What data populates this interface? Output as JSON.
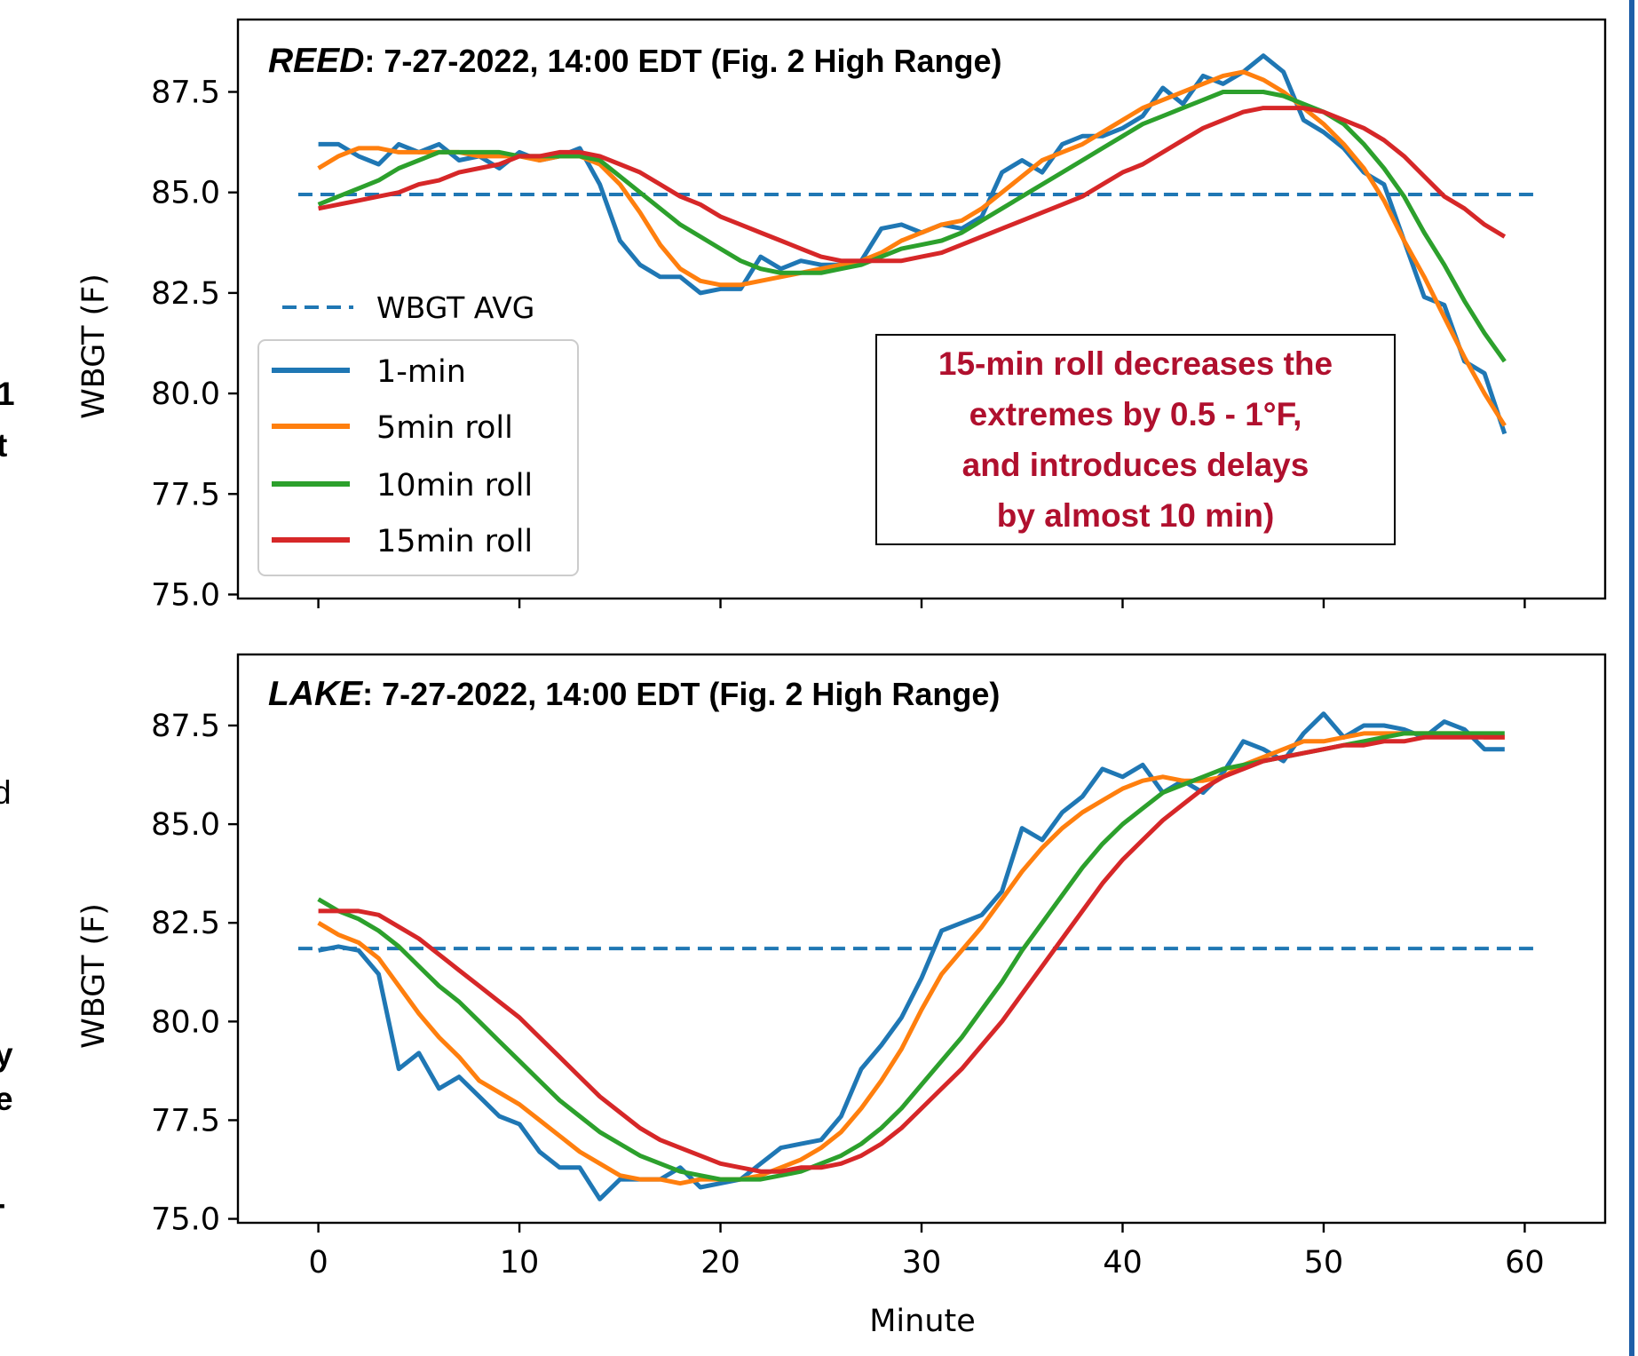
{
  "colors": {
    "avg": "#1f77b4",
    "one_min": "#1f77b4",
    "roll5": "#ff7f0e",
    "roll10": "#2ca02c",
    "roll15": "#d62728",
    "annotation": "#b0102e",
    "frame_right": "#1f5fa8"
  },
  "chart_data": [
    {
      "type": "line",
      "title_italic": "REED",
      "title_rest": ": 7-27-2022, 14:00 EDT (Fig. 2 High Range)",
      "xlabel": "",
      "ylabel": "WBGT (F)",
      "xlim": [
        -4,
        64
      ],
      "ylim": [
        74.9,
        89.3
      ],
      "yticks": [
        "75.0",
        "77.5",
        "80.0",
        "82.5",
        "85.0",
        "87.5"
      ],
      "xticks": [
        0,
        10,
        20,
        30,
        40,
        50,
        60
      ],
      "x_tick_labels_shown": false,
      "avg_line": {
        "name": "WBGT AVG",
        "value": 84.95
      },
      "legend": {
        "placement": "lower-left",
        "avg_label": "WBGT AVG",
        "entries": [
          "1-min",
          "5min roll",
          "10min roll",
          "15min roll"
        ]
      },
      "annotation": {
        "lines": [
          "15-min roll decreases the",
          "extremes by 0.5 - 1°F,",
          "and introduces delays",
          "by almost 10 min)"
        ]
      },
      "series": [
        {
          "name": "1-min",
          "color_key": "one_min",
          "x_start": 0,
          "values": [
            86.2,
            86.2,
            85.9,
            85.7,
            86.2,
            86.0,
            86.2,
            85.8,
            85.9,
            85.6,
            86.0,
            85.8,
            85.9,
            86.1,
            85.2,
            83.8,
            83.2,
            82.9,
            82.9,
            82.5,
            82.6,
            82.6,
            83.4,
            83.1,
            83.3,
            83.2,
            83.2,
            83.3,
            84.1,
            84.2,
            84.0,
            84.2,
            84.1,
            84.4,
            85.5,
            85.8,
            85.5,
            86.2,
            86.4,
            86.4,
            86.6,
            86.9,
            87.6,
            87.2,
            87.9,
            87.7,
            88.0,
            88.4,
            88.0,
            86.8,
            86.5,
            86.1,
            85.5,
            85.2,
            83.8,
            82.4,
            82.2,
            80.8,
            80.5,
            79.0
          ]
        },
        {
          "name": "5min roll",
          "color_key": "roll5",
          "x_start": 0,
          "values": [
            85.6,
            85.9,
            86.1,
            86.1,
            86.0,
            86.0,
            86.0,
            86.0,
            85.9,
            85.9,
            85.9,
            85.8,
            85.9,
            85.9,
            85.7,
            85.2,
            84.5,
            83.7,
            83.1,
            82.8,
            82.7,
            82.7,
            82.8,
            82.9,
            83.0,
            83.1,
            83.2,
            83.3,
            83.5,
            83.8,
            84.0,
            84.2,
            84.3,
            84.6,
            85.0,
            85.4,
            85.8,
            86.0,
            86.2,
            86.5,
            86.8,
            87.1,
            87.3,
            87.5,
            87.7,
            87.9,
            88.0,
            87.8,
            87.5,
            87.1,
            86.7,
            86.2,
            85.6,
            84.8,
            83.8,
            82.9,
            81.9,
            80.9,
            80.0,
            79.2
          ]
        },
        {
          "name": "10min roll",
          "color_key": "roll10",
          "x_start": 0,
          "values": [
            84.7,
            84.9,
            85.1,
            85.3,
            85.6,
            85.8,
            86.0,
            86.0,
            86.0,
            86.0,
            85.9,
            85.9,
            85.9,
            85.9,
            85.8,
            85.4,
            85.0,
            84.6,
            84.2,
            83.9,
            83.6,
            83.3,
            83.1,
            83.0,
            83.0,
            83.0,
            83.1,
            83.2,
            83.4,
            83.6,
            83.7,
            83.8,
            84.0,
            84.3,
            84.6,
            84.9,
            85.2,
            85.5,
            85.8,
            86.1,
            86.4,
            86.7,
            86.9,
            87.1,
            87.3,
            87.5,
            87.5,
            87.5,
            87.4,
            87.2,
            87.0,
            86.7,
            86.2,
            85.6,
            84.9,
            84.0,
            83.2,
            82.3,
            81.5,
            80.8
          ]
        },
        {
          "name": "15min roll",
          "color_key": "roll15",
          "x_start": 0,
          "values": [
            84.6,
            84.7,
            84.8,
            84.9,
            85.0,
            85.2,
            85.3,
            85.5,
            85.6,
            85.7,
            85.9,
            85.9,
            86.0,
            86.0,
            85.9,
            85.7,
            85.5,
            85.2,
            84.9,
            84.7,
            84.4,
            84.2,
            84.0,
            83.8,
            83.6,
            83.4,
            83.3,
            83.3,
            83.3,
            83.3,
            83.4,
            83.5,
            83.7,
            83.9,
            84.1,
            84.3,
            84.5,
            84.7,
            84.9,
            85.2,
            85.5,
            85.7,
            86.0,
            86.3,
            86.6,
            86.8,
            87.0,
            87.1,
            87.1,
            87.1,
            87.0,
            86.8,
            86.6,
            86.3,
            85.9,
            85.4,
            84.9,
            84.6,
            84.2,
            83.9
          ]
        }
      ]
    },
    {
      "type": "line",
      "title_italic": "LAKE",
      "title_rest": ": 7-27-2022, 14:00 EDT (Fig. 2 High Range)",
      "xlabel": "Minute",
      "ylabel": "WBGT (F)",
      "xlim": [
        -4,
        64
      ],
      "ylim": [
        74.9,
        89.3
      ],
      "yticks": [
        "75.0",
        "77.5",
        "80.0",
        "82.5",
        "85.0",
        "87.5"
      ],
      "xticks": [
        0,
        10,
        20,
        30,
        40,
        50,
        60
      ],
      "x_tick_labels_shown": true,
      "avg_line": {
        "name": "WBGT AVG",
        "value": 81.85
      },
      "series": [
        {
          "name": "1-min",
          "color_key": "one_min",
          "x_start": 0,
          "values": [
            81.8,
            81.9,
            81.8,
            81.2,
            78.8,
            79.2,
            78.3,
            78.6,
            78.1,
            77.6,
            77.4,
            76.7,
            76.3,
            76.3,
            75.5,
            76.0,
            76.0,
            76.0,
            76.3,
            75.8,
            75.9,
            76.0,
            76.4,
            76.8,
            76.9,
            77.0,
            77.6,
            78.8,
            79.4,
            80.1,
            81.1,
            82.3,
            82.5,
            82.7,
            83.3,
            84.9,
            84.6,
            85.3,
            85.7,
            86.4,
            86.2,
            86.5,
            85.8,
            86.1,
            85.8,
            86.3,
            87.1,
            86.9,
            86.6,
            87.3,
            87.8,
            87.2,
            87.5,
            87.5,
            87.4,
            87.2,
            87.6,
            87.4,
            86.9,
            86.9
          ]
        },
        {
          "name": "5min roll",
          "color_key": "roll5",
          "x_start": 0,
          "values": [
            82.5,
            82.2,
            82.0,
            81.6,
            80.9,
            80.2,
            79.6,
            79.1,
            78.5,
            78.2,
            77.9,
            77.5,
            77.1,
            76.7,
            76.4,
            76.1,
            76.0,
            76.0,
            75.9,
            76.0,
            76.0,
            76.0,
            76.1,
            76.3,
            76.5,
            76.8,
            77.2,
            77.8,
            78.5,
            79.3,
            80.3,
            81.2,
            81.8,
            82.4,
            83.1,
            83.8,
            84.4,
            84.9,
            85.3,
            85.6,
            85.9,
            86.1,
            86.2,
            86.1,
            86.1,
            86.2,
            86.5,
            86.7,
            86.9,
            87.1,
            87.1,
            87.2,
            87.3,
            87.3,
            87.3,
            87.3,
            87.3,
            87.3,
            87.2,
            87.2
          ]
        },
        {
          "name": "10min roll",
          "color_key": "roll10",
          "x_start": 0,
          "values": [
            83.1,
            82.8,
            82.6,
            82.3,
            81.9,
            81.4,
            80.9,
            80.5,
            80.0,
            79.5,
            79.0,
            78.5,
            78.0,
            77.6,
            77.2,
            76.9,
            76.6,
            76.4,
            76.2,
            76.1,
            76.0,
            76.0,
            76.0,
            76.1,
            76.2,
            76.4,
            76.6,
            76.9,
            77.3,
            77.8,
            78.4,
            79.0,
            79.6,
            80.3,
            81.0,
            81.8,
            82.5,
            83.2,
            83.9,
            84.5,
            85.0,
            85.4,
            85.8,
            86.0,
            86.2,
            86.4,
            86.5,
            86.6,
            86.7,
            86.8,
            86.9,
            87.0,
            87.1,
            87.2,
            87.3,
            87.3,
            87.3,
            87.3,
            87.3,
            87.3
          ]
        },
        {
          "name": "15min roll",
          "color_key": "roll15",
          "x_start": 0,
          "values": [
            82.8,
            82.8,
            82.8,
            82.7,
            82.4,
            82.1,
            81.7,
            81.3,
            80.9,
            80.5,
            80.1,
            79.6,
            79.1,
            78.6,
            78.1,
            77.7,
            77.3,
            77.0,
            76.8,
            76.6,
            76.4,
            76.3,
            76.2,
            76.2,
            76.3,
            76.3,
            76.4,
            76.6,
            76.9,
            77.3,
            77.8,
            78.3,
            78.8,
            79.4,
            80.0,
            80.7,
            81.4,
            82.1,
            82.8,
            83.5,
            84.1,
            84.6,
            85.1,
            85.5,
            85.9,
            86.2,
            86.4,
            86.6,
            86.7,
            86.8,
            86.9,
            87.0,
            87.0,
            87.1,
            87.1,
            87.2,
            87.2,
            87.2,
            87.2,
            87.2
          ]
        }
      ]
    }
  ],
  "side_fragments": {
    "top": [
      "1",
      "t"
    ],
    "middle": [
      "d"
    ],
    "bottom": [
      "y",
      "e",
      "-"
    ]
  }
}
